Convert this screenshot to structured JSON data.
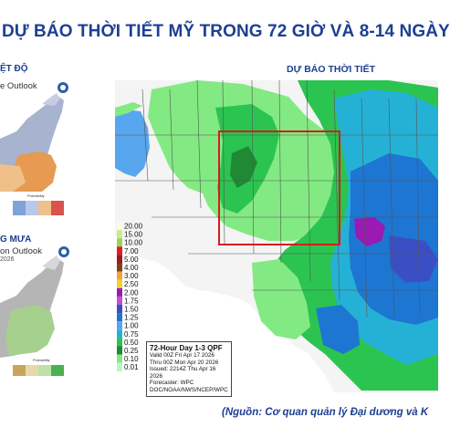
{
  "header": {
    "title": "DỰ BÁO THỜI TIẾT MỸ TRONG 72 GIỜ VÀ 8-14 NGÀY",
    "map_title": "DỰ BÁO THỜI TIẾT"
  },
  "left_panels": {
    "temperature": {
      "label": "ỆT ĐỘ",
      "subtitle": "e Outlook"
    },
    "precipitation": {
      "label": "G MƯA",
      "subtitle": "on Outlook",
      "year": "2026"
    },
    "legend_caption": "Probability"
  },
  "qpf": {
    "legend": [
      "20.00",
      "15.00",
      "10.00",
      "7.00",
      "5.00",
      "4.00",
      "3.00",
      "2.50",
      "2.00",
      "1.75",
      "1.50",
      "1.25",
      "1.00",
      "0.75",
      "0.50",
      "0.25",
      "0.10",
      "0.01"
    ],
    "legend_colors": [
      "#f5ffe0",
      "#cceb8c",
      "#9bd35a",
      "#de1f26",
      "#9c1a1e",
      "#7c4510",
      "#f0a244",
      "#f2d32f",
      "#9a1ab3",
      "#c24fd4",
      "#3b4fc4",
      "#1d76d2",
      "#58a6ee",
      "#25b1d6",
      "#2bc451",
      "#1f8a33",
      "#83ea83",
      "#baf6c5"
    ],
    "info": {
      "head": "72-Hour Day 1-3 QPF",
      "valid": "Valid 00Z Fri Apr 17 2026",
      "thru": "Thru 00Z Mon Apr 20 2026",
      "issued": "Issued: 2214Z Thu Apr 16 2026",
      "forecaster": "Forecaster: WPC",
      "agency": "DOC/NOAA/NWS/NCEP/WPC"
    },
    "colors": {
      "heavy": "#1d76d2",
      "medium": "#58a6ee",
      "light_green": "#83ea83",
      "green": "#2bc451",
      "highlight_box": "#d91a1a"
    }
  },
  "source": "(Nguồn: Cơ quan quản lý Đại dương và K"
}
